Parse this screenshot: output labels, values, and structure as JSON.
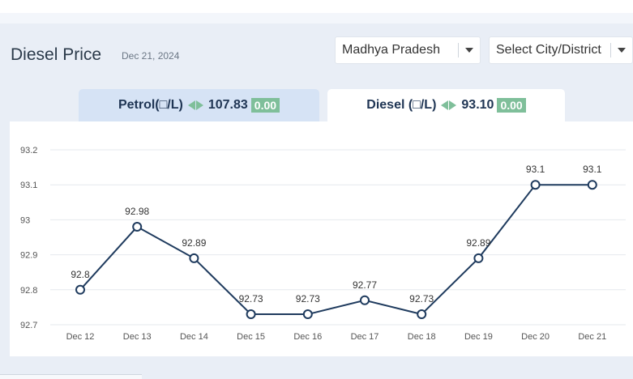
{
  "header": {
    "title": "Diesel Price",
    "date": "Dec 21, 2024",
    "state_select": "Madhya Pradesh",
    "city_select": "Select City/District"
  },
  "tabs": {
    "petrol": {
      "label": "Petrol(□/L)",
      "price": "107.83",
      "change": "0.00"
    },
    "diesel": {
      "label": "Diesel (□/L)",
      "price": "93.10",
      "change": "0.00"
    }
  },
  "colors": {
    "line": "#1f3b5e",
    "badge": "#7fbf9a",
    "grid": "#e6e9ee"
  },
  "chart_data": {
    "type": "line",
    "categories": [
      "Dec 12",
      "Dec 13",
      "Dec 14",
      "Dec 15",
      "Dec 16",
      "Dec 17",
      "Dec 18",
      "Dec 19",
      "Dec 20",
      "Dec 21"
    ],
    "values": [
      92.8,
      92.98,
      92.89,
      92.73,
      92.73,
      92.77,
      92.73,
      92.89,
      93.1,
      93.1
    ],
    "value_labels": [
      "92.8",
      "92.98",
      "92.89",
      "92.73",
      "92.73",
      "92.77",
      "92.73",
      "92.89",
      "93.1",
      "93.1"
    ],
    "yticks": [
      "92.7",
      "92.8",
      "92.9",
      "93",
      "93.1",
      "93.2"
    ],
    "ylim": [
      92.7,
      93.2
    ],
    "grid": true,
    "title": "",
    "xlabel": "",
    "ylabel": ""
  }
}
